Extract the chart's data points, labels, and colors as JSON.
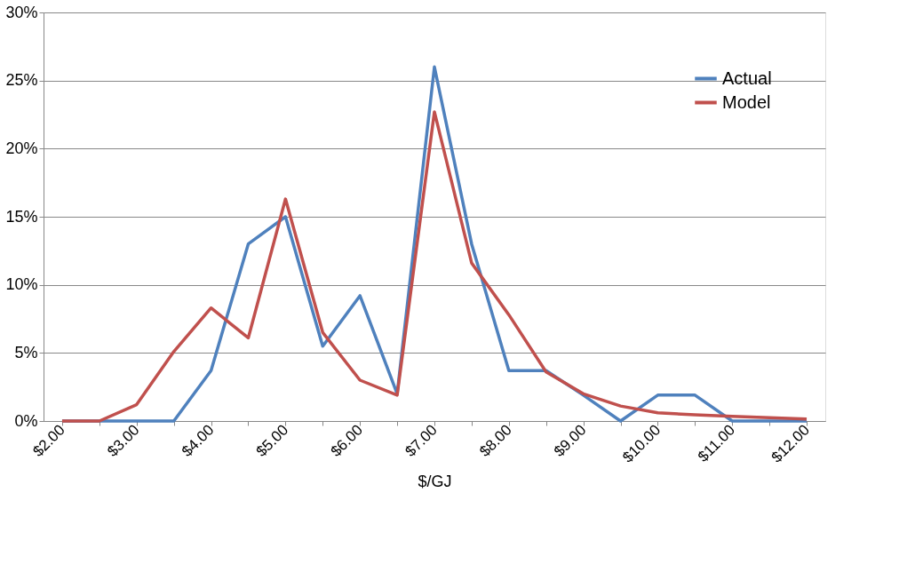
{
  "chart_data": {
    "type": "line",
    "xlabel": "$/GJ",
    "categories": [
      "$2.00",
      null,
      "$3.00",
      null,
      "$4.00",
      null,
      "$5.00",
      null,
      "$6.00",
      null,
      "$7.00",
      null,
      "$8.00",
      null,
      "$9.00",
      null,
      "$10.00",
      null,
      "$11.00",
      null,
      "$12.00"
    ],
    "series": [
      {
        "name": "Actual",
        "color": "#4f81bd",
        "values": [
          0,
          0,
          0,
          0,
          3.7,
          13,
          15,
          5.5,
          9.2,
          2,
          26,
          13,
          3.7,
          3.7,
          1.9,
          0,
          1.9,
          1.9,
          0,
          0,
          0
        ]
      },
      {
        "name": "Model",
        "color": "#c0504d",
        "values": [
          0,
          0,
          1.2,
          5.1,
          8.3,
          6.1,
          16.3,
          6.5,
          3.0,
          1.9,
          22.7,
          11.6,
          7.8,
          3.6,
          2.0,
          1.1,
          0.6,
          0.45,
          0.35,
          0.25,
          0.15
        ]
      }
    ],
    "ylim": [
      0,
      30
    ],
    "yticks": [
      {
        "value": 0,
        "label": "0%"
      },
      {
        "value": 5,
        "label": "5%"
      },
      {
        "value": 10,
        "label": "10%"
      },
      {
        "value": 15,
        "label": "15%"
      },
      {
        "value": 20,
        "label": "20%"
      },
      {
        "value": 25,
        "label": "25%"
      },
      {
        "value": 30,
        "label": "30%"
      }
    ],
    "grid": "y",
    "legend": "top right",
    "marker": "none",
    "line_style": "solid"
  }
}
